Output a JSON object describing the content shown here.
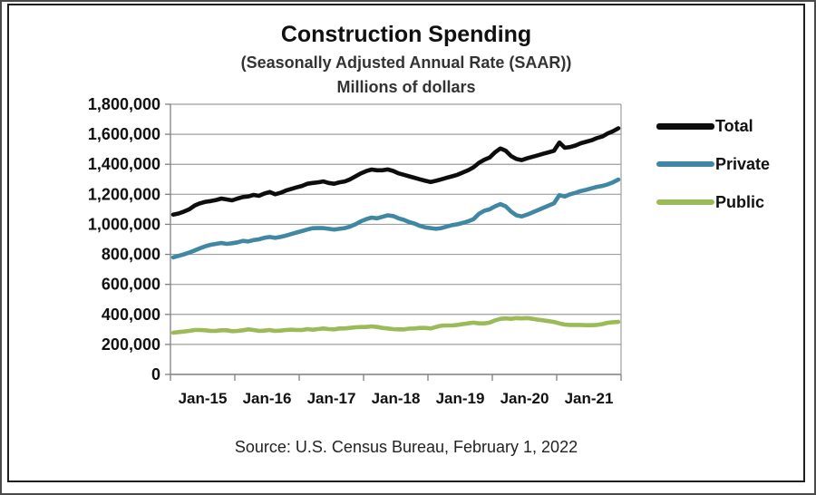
{
  "chart_data": {
    "type": "line",
    "title": "Construction Spending",
    "subtitle": "(Seasonally Adjusted Annual Rate (SAAR))",
    "units_label": "Millions of dollars",
    "source": "Source: U.S. Census Bureau, February 1, 2022",
    "x_range": "Monthly data, Jan 2015 through Dec 2021 (84 points per series)",
    "x_tick_labels": [
      "Jan-15",
      "Jan-16",
      "Jan-17",
      "Jan-18",
      "Jan-19",
      "Jan-20",
      "Jan-21"
    ],
    "ylim": [
      0,
      1800000
    ],
    "y_ticks": [
      0,
      200000,
      400000,
      600000,
      800000,
      1000000,
      1200000,
      1400000,
      1600000,
      1800000
    ],
    "y_tick_labels": [
      "0",
      "200,000",
      "400,000",
      "600,000",
      "800,000",
      "1,000,000",
      "1,200,000",
      "1,400,000",
      "1,600,000",
      "1,800,000"
    ],
    "grid": "horizontal",
    "legend_position": "right",
    "series": [
      {
        "name": "Total",
        "color": "#0d0d0d",
        "values": [
          1065000,
          1072000,
          1085000,
          1100000,
          1125000,
          1140000,
          1150000,
          1155000,
          1162000,
          1172000,
          1166000,
          1160000,
          1172000,
          1182000,
          1186000,
          1196000,
          1190000,
          1205000,
          1215000,
          1200000,
          1210000,
          1225000,
          1236000,
          1246000,
          1256000,
          1270000,
          1276000,
          1280000,
          1286000,
          1276000,
          1270000,
          1280000,
          1286000,
          1300000,
          1320000,
          1340000,
          1355000,
          1365000,
          1360000,
          1360000,
          1366000,
          1356000,
          1340000,
          1330000,
          1320000,
          1310000,
          1300000,
          1290000,
          1282000,
          1290000,
          1300000,
          1310000,
          1320000,
          1330000,
          1345000,
          1360000,
          1380000,
          1410000,
          1430000,
          1445000,
          1480000,
          1505000,
          1490000,
          1455000,
          1435000,
          1428000,
          1440000,
          1450000,
          1460000,
          1470000,
          1480000,
          1490000,
          1545000,
          1510000,
          1515000,
          1525000,
          1540000,
          1550000,
          1560000,
          1575000,
          1585000,
          1605000,
          1620000,
          1640000
        ]
      },
      {
        "name": "Private",
        "color": "#3f87a3",
        "values": [
          780000,
          790000,
          800000,
          812000,
          826000,
          840000,
          854000,
          864000,
          870000,
          876000,
          870000,
          874000,
          880000,
          890000,
          886000,
          895000,
          900000,
          910000,
          916000,
          910000,
          916000,
          925000,
          935000,
          945000,
          955000,
          965000,
          974000,
          975000,
          975000,
          970000,
          965000,
          970000,
          975000,
          985000,
          1000000,
          1020000,
          1035000,
          1045000,
          1040000,
          1050000,
          1060000,
          1055000,
          1040000,
          1030000,
          1015000,
          1005000,
          990000,
          980000,
          975000,
          970000,
          975000,
          985000,
          995000,
          1000000,
          1010000,
          1020000,
          1035000,
          1070000,
          1090000,
          1100000,
          1120000,
          1135000,
          1120000,
          1085000,
          1060000,
          1053000,
          1065000,
          1080000,
          1095000,
          1110000,
          1125000,
          1140000,
          1195000,
          1185000,
          1200000,
          1210000,
          1222000,
          1230000,
          1240000,
          1250000,
          1256000,
          1266000,
          1280000,
          1298000
        ]
      },
      {
        "name": "Public",
        "color": "#9bbb59",
        "values": [
          278000,
          282000,
          286000,
          290000,
          296000,
          296000,
          294000,
          290000,
          290000,
          295000,
          294000,
          288000,
          290000,
          294000,
          300000,
          296000,
          290000,
          292000,
          296000,
          290000,
          292000,
          296000,
          298000,
          296000,
          296000,
          302000,
          298000,
          302000,
          306000,
          302000,
          300000,
          306000,
          306000,
          310000,
          314000,
          316000,
          316000,
          320000,
          316000,
          310000,
          306000,
          302000,
          300000,
          300000,
          305000,
          306000,
          310000,
          310000,
          306000,
          316000,
          325000,
          326000,
          326000,
          330000,
          335000,
          340000,
          345000,
          340000,
          340000,
          345000,
          360000,
          370000,
          373000,
          370000,
          375000,
          373000,
          375000,
          370000,
          365000,
          360000,
          355000,
          350000,
          340000,
          332000,
          330000,
          330000,
          330000,
          328000,
          328000,
          330000,
          335000,
          344000,
          348000,
          350000
        ]
      }
    ]
  }
}
